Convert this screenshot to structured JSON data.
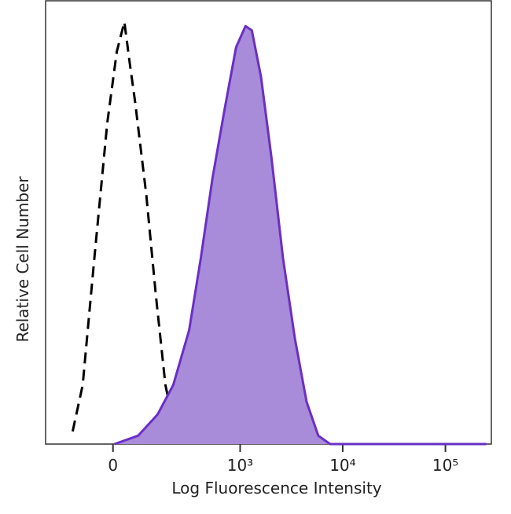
{
  "chart_data": {
    "type": "histogram-overlay",
    "xlabel": "Log Fluorescence Intensity",
    "ylabel": "Relative Cell Number",
    "xscale": "biexponential",
    "xlim": [
      -250,
      280000
    ],
    "ylim": [
      0,
      105
    ],
    "xticks": [
      0,
      {
        "value": 1000,
        "label": "10³"
      },
      {
        "value": 10000,
        "label": "10⁴"
      },
      {
        "value": 100000,
        "label": "10⁵"
      }
    ],
    "series": [
      {
        "color": "#000000",
        "style": "dashed",
        "x": [
          -120,
          -85,
          -50,
          -15,
          10,
          30,
          45,
          60,
          95,
          130,
          170,
          220,
          310
        ],
        "values": [
          3,
          14,
          44,
          76,
          93,
          100,
          90,
          81,
          59,
          35,
          14,
          3,
          0
        ]
      },
      {
        "color": "#6a2fc4",
        "fill": "#a88bd9",
        "style": "solid",
        "x": [
          4,
          69,
          136,
          209,
          309,
          407,
          534,
          700,
          912,
          1128,
          1300,
          1600,
          2020,
          2620,
          3420,
          4450,
          5780,
          7540,
          250000
        ],
        "values": [
          0,
          2,
          7,
          14,
          27,
          44,
          63,
          79,
          94,
          99,
          98,
          87,
          68,
          44,
          25,
          10,
          2,
          0,
          0
        ]
      }
    ]
  }
}
